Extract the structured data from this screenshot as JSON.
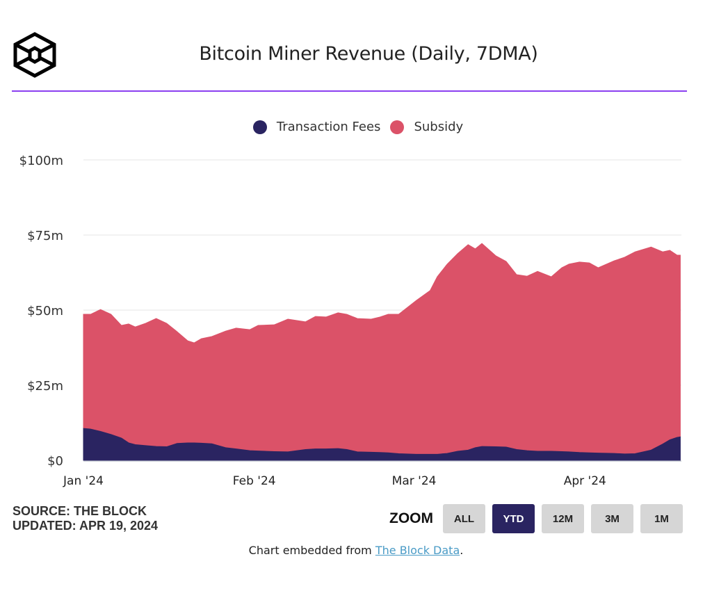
{
  "header": {
    "title": "Bitcoin Miner Revenue (Daily, 7DMA)",
    "logo_icon": "the-block-cube-logo"
  },
  "legend": [
    {
      "label": "Transaction Fees",
      "color": "#2a2461"
    },
    {
      "label": "Subsidy",
      "color": "#db5268"
    }
  ],
  "footer": {
    "source": "SOURCE: THE BLOCK",
    "updated": "UPDATED: APR 19, 2024",
    "zoom_label": "ZOOM",
    "zoom_buttons": [
      {
        "label": "ALL",
        "active": false
      },
      {
        "label": "YTD",
        "active": true
      },
      {
        "label": "12M",
        "active": false
      },
      {
        "label": "3M",
        "active": false
      },
      {
        "label": "1M",
        "active": false
      }
    ],
    "embed_prefix": "Chart embedded from ",
    "embed_link": "The Block Data",
    "embed_suffix": "."
  },
  "chart_data": {
    "type": "area",
    "stacked": true,
    "title": "Bitcoin Miner Revenue (Daily, 7DMA)",
    "xlabel": "",
    "ylabel": "",
    "ylim": [
      0,
      100
    ],
    "y_ticks": [
      0,
      25,
      50,
      75,
      100
    ],
    "y_tick_labels": [
      "$0",
      "$25m",
      "$50m",
      "$75m",
      "$100m"
    ],
    "x_range_days": [
      0,
      108.5
    ],
    "x_ticks": [
      0,
      31,
      60,
      91
    ],
    "x_tick_labels": [
      "Jan '24",
      "Feb '24",
      "Mar '24",
      "Apr '24"
    ],
    "grid": true,
    "legend_position": "top-center",
    "x_unit": "days since Jan 1, 2024",
    "x": [
      0,
      1.3,
      3.1,
      5,
      6.9,
      8.2,
      9.4,
      11.3,
      13.2,
      15.1,
      17,
      18.9,
      20.1,
      21.4,
      23.3,
      25.8,
      27.7,
      30.2,
      31.7,
      34.6,
      37.1,
      40.3,
      42.1,
      44,
      46.2,
      47.8,
      49.7,
      52.2,
      53.8,
      55.3,
      57.2,
      60.4,
      62.9,
      64.2,
      66,
      67.9,
      69.8,
      71.1,
      72.3,
      74.8,
      76.7,
      78.6,
      80.5,
      82.4,
      84.9,
      86.8,
      88.1,
      90,
      91.8,
      93.4,
      96.3,
      98.2,
      100.1,
      103,
      105.1,
      106.4,
      107.7,
      108.3
    ],
    "series": [
      {
        "name": "Transaction Fees",
        "color": "#2a2461",
        "values": [
          10.6,
          10.4,
          9.6,
          8.6,
          7.4,
          5.8,
          5.2,
          4.9,
          4.6,
          4.5,
          5.6,
          5.8,
          5.8,
          5.7,
          5.5,
          4.2,
          3.8,
          3.2,
          3.1,
          2.9,
          2.8,
          3.6,
          3.8,
          3.8,
          3.9,
          3.6,
          2.8,
          2.7,
          2.6,
          2.5,
          2.2,
          2.0,
          2.0,
          2.0,
          2.3,
          3.0,
          3.4,
          4.2,
          4.6,
          4.5,
          4.4,
          3.6,
          3.2,
          3.0,
          3.0,
          2.9,
          2.8,
          2.6,
          2.5,
          2.4,
          2.3,
          2.1,
          2.2,
          3.4,
          5.4,
          6.8,
          7.6,
          7.8
        ]
      },
      {
        "name": "Subsidy",
        "color": "#db5268",
        "values": [
          38.0,
          38.2,
          40.6,
          40.0,
          37.5,
          39.6,
          39.2,
          40.7,
          42.6,
          41.1,
          37.2,
          34.0,
          33.3,
          34.8,
          35.7,
          38.8,
          40.2,
          40.3,
          41.8,
          42.2,
          44.2,
          42.5,
          44.1,
          43.9,
          45.2,
          45.0,
          44.4,
          44.3,
          45.1,
          46.1,
          46.4,
          51.2,
          54.5,
          59.1,
          63.0,
          65.8,
          68.4,
          66.2,
          67.6,
          63.6,
          61.8,
          58.2,
          58.1,
          59.9,
          58.1,
          61.2,
          62.5,
          63.4,
          63.2,
          61.7,
          64.1,
          65.5,
          67.2,
          67.6,
          64.0,
          63.1,
          60.7,
          60.5
        ]
      },
      {
        "name": "Total (stack top)",
        "values": [
          48.6,
          48.6,
          50.2,
          48.6,
          44.9,
          45.4,
          44.4,
          45.6,
          47.2,
          45.6,
          42.8,
          39.8,
          39.1,
          40.5,
          41.2,
          43.0,
          44.0,
          43.5,
          44.9,
          45.1,
          47.0,
          46.1,
          47.9,
          47.7,
          49.1,
          48.6,
          47.2,
          47.0,
          47.7,
          48.6,
          48.6,
          53.2,
          56.5,
          61.1,
          65.3,
          68.8,
          71.8,
          70.4,
          72.2,
          68.1,
          66.2,
          61.8,
          61.3,
          62.9,
          61.1,
          64.1,
          65.3,
          66.0,
          65.7,
          64.1,
          66.4,
          67.6,
          69.4,
          71.0,
          69.4,
          69.9,
          68.3,
          68.3
        ]
      }
    ]
  }
}
